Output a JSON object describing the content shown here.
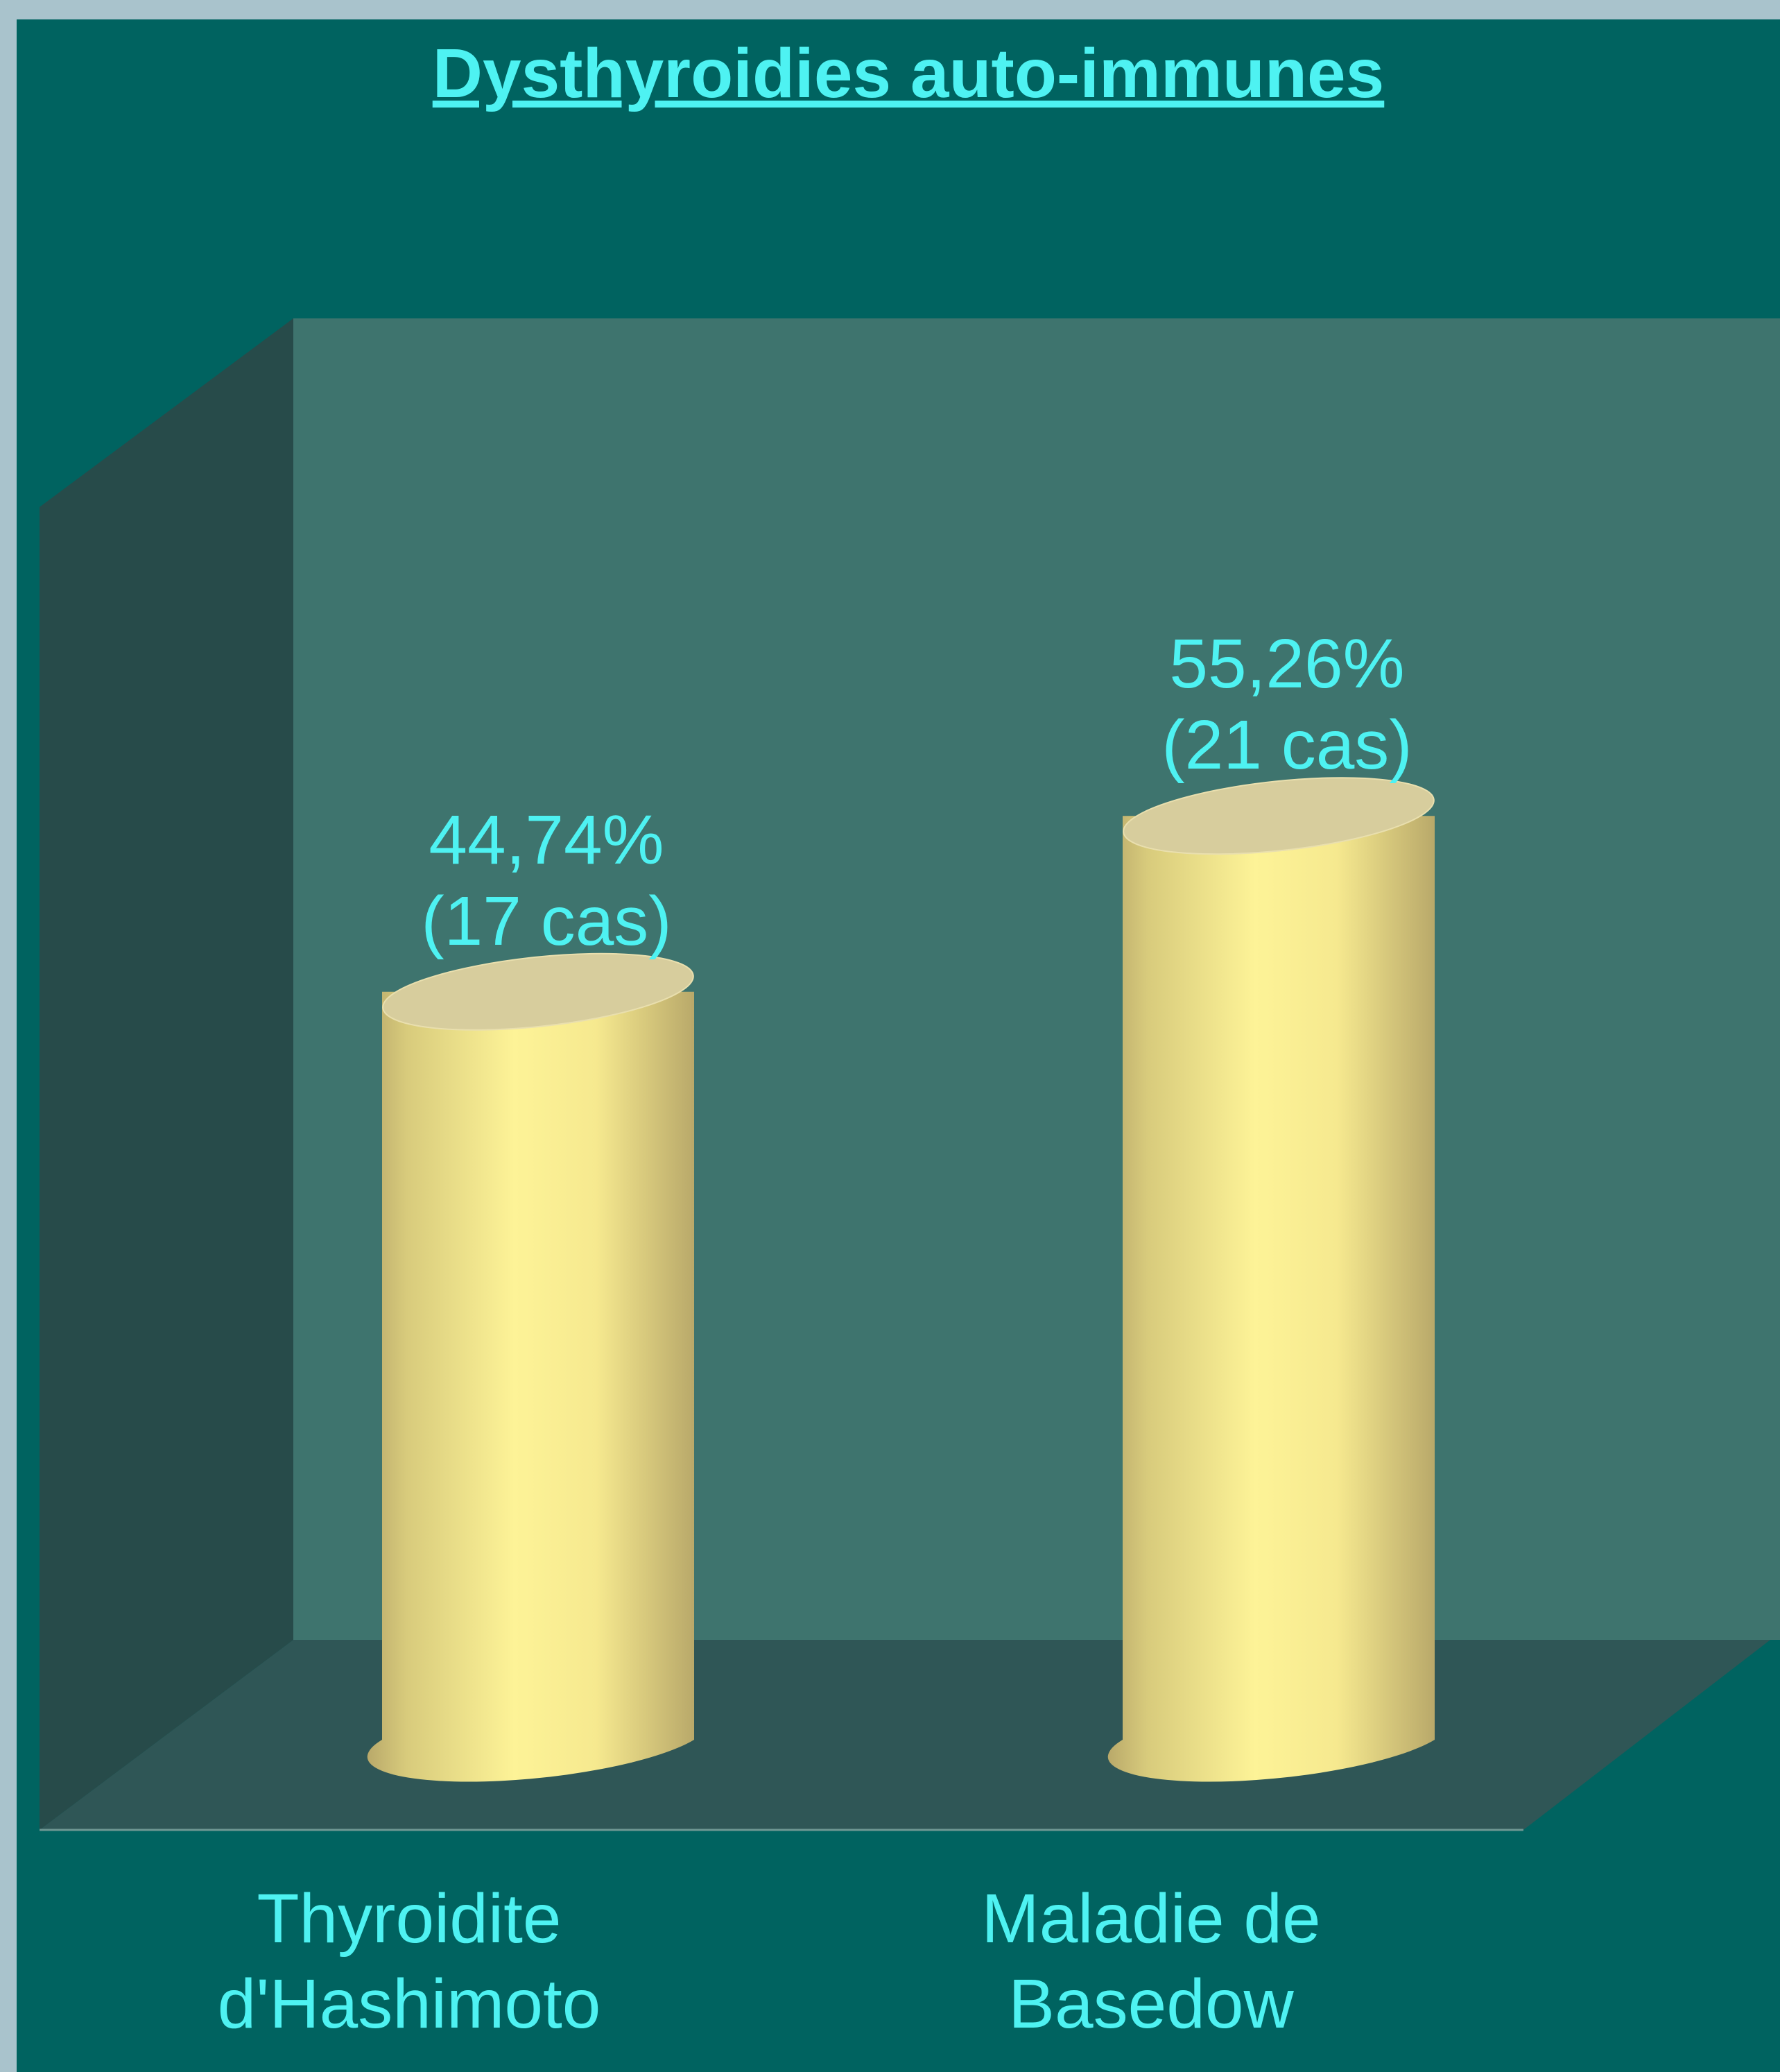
{
  "chart_data": {
    "type": "bar",
    "title": "Dysthyroidies auto-immunes",
    "categories": [
      "Thyroidite d'Hashimoto",
      "Maladie de Basedow"
    ],
    "category_lines": [
      [
        "Thyroidite",
        "d'Hashimoto"
      ],
      [
        "Maladie de",
        "Basedow"
      ]
    ],
    "values": [
      44.74,
      55.26
    ],
    "data_labels": [
      {
        "value": "44,74%",
        "count": "(17 cas)"
      },
      {
        "value": "55,26%",
        "count": "(21 cas)"
      }
    ],
    "ylim": [
      0,
      100
    ],
    "bar_style": "3d-cylinder",
    "grid": false,
    "legend": "none",
    "colors": {
      "background": "#006360",
      "back_wall": "#3e746e",
      "side_wall": "#274b4a",
      "floor": "#2f5656",
      "bar_body": "#fdf397",
      "bar_edge": "#b9a96a",
      "bar_top": "#d7cd9d",
      "title_text": "#4ef2f2",
      "label_text": "#4ef2f2"
    }
  }
}
